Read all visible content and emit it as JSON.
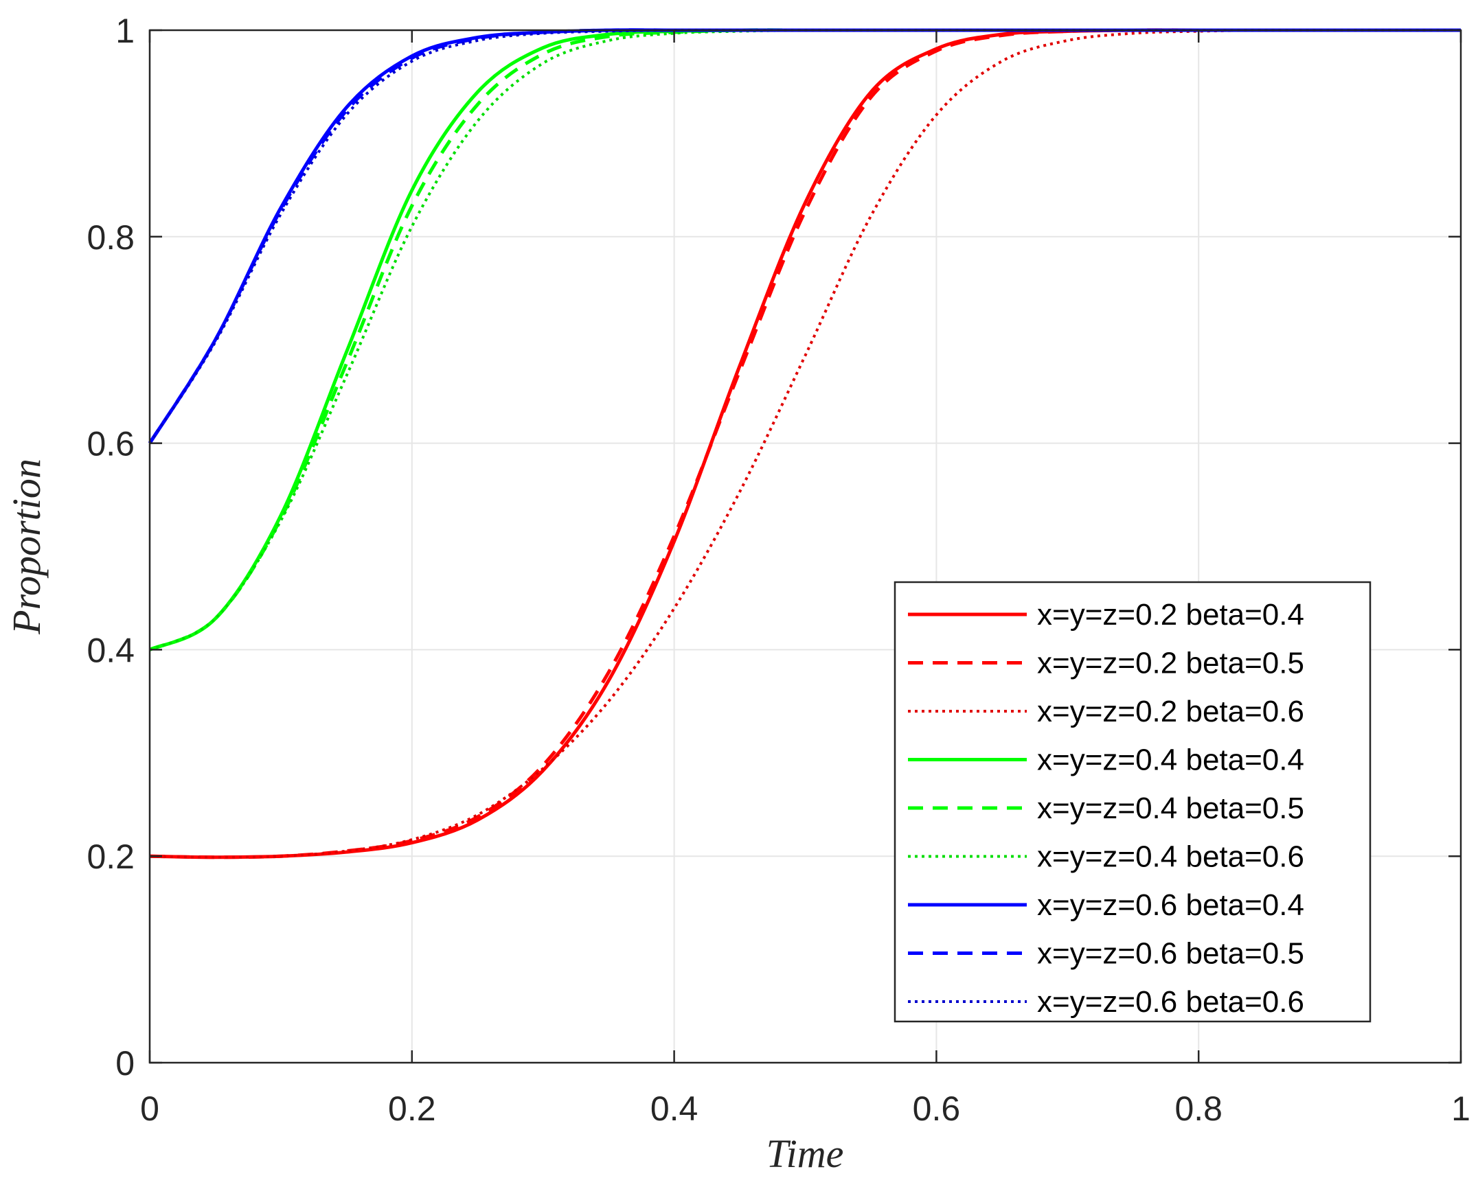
{
  "chart_data": {
    "type": "line",
    "title": "",
    "xlabel": "Time",
    "ylabel": "Proportion",
    "xlim": [
      0,
      1
    ],
    "ylim": [
      0,
      1
    ],
    "xticks": [
      0,
      0.2,
      0.4,
      0.6,
      0.8,
      1
    ],
    "yticks": [
      0,
      0.2,
      0.4,
      0.6,
      0.8,
      1
    ],
    "xtick_labels": [
      "0",
      "0.2",
      "0.4",
      "0.6",
      "0.8",
      "1"
    ],
    "ytick_labels": [
      "0",
      "0.2",
      "0.4",
      "0.6",
      "0.8",
      "1"
    ],
    "grid": true,
    "legend_position": "bottom-right",
    "x": [
      0,
      0.05,
      0.1,
      0.15,
      0.2,
      0.25,
      0.3,
      0.35,
      0.4,
      0.45,
      0.5,
      0.55,
      0.6,
      0.65,
      0.7,
      0.75,
      0.8,
      0.85,
      0.9,
      0.95,
      1
    ],
    "series": [
      {
        "name": "x=y=z=0.2 beta=0.4",
        "color": "#ff0000",
        "style": "solid",
        "values": [
          0.2,
          0.199,
          0.2,
          0.204,
          0.213,
          0.235,
          0.283,
          0.37,
          0.505,
          0.675,
          0.833,
          0.94,
          0.982,
          0.996,
          0.999,
          1,
          1,
          1,
          1,
          1,
          1
        ]
      },
      {
        "name": "x=y=z=0.2 beta=0.5",
        "color": "#ff0000",
        "style": "dashed",
        "values": [
          0.2,
          0.199,
          0.2,
          0.205,
          0.215,
          0.238,
          0.288,
          0.378,
          0.51,
          0.67,
          0.825,
          0.935,
          0.98,
          0.995,
          0.999,
          1,
          1,
          1,
          1,
          1,
          1
        ]
      },
      {
        "name": "x=y=z=0.2 beta=0.6",
        "color": "#e00000",
        "style": "dotted",
        "values": [
          0.2,
          0.199,
          0.2,
          0.205,
          0.216,
          0.24,
          0.285,
          0.35,
          0.44,
          0.553,
          0.685,
          0.82,
          0.918,
          0.97,
          0.99,
          0.997,
          0.999,
          1,
          1,
          1,
          1
        ]
      },
      {
        "name": "x=y=z=0.4 beta=0.4",
        "color": "#00ff00",
        "style": "solid",
        "values": [
          0.4,
          0.43,
          0.53,
          0.688,
          0.845,
          0.94,
          0.983,
          0.996,
          0.999,
          1,
          1,
          1,
          1,
          1,
          1,
          1,
          1,
          1,
          1,
          1,
          1
        ]
      },
      {
        "name": "x=y=z=0.4 beta=0.5",
        "color": "#00ff00",
        "style": "dashed",
        "values": [
          0.4,
          0.43,
          0.527,
          0.677,
          0.83,
          0.928,
          0.977,
          0.994,
          0.998,
          1,
          1,
          1,
          1,
          1,
          1,
          1,
          1,
          1,
          1,
          1,
          1
        ]
      },
      {
        "name": "x=y=z=0.4 beta=0.6",
        "color": "#00dd00",
        "style": "dotted",
        "values": [
          0.4,
          0.43,
          0.525,
          0.665,
          0.81,
          0.912,
          0.968,
          0.99,
          0.997,
          0.999,
          1,
          1,
          1,
          1,
          1,
          1,
          1,
          1,
          1,
          1,
          1
        ]
      },
      {
        "name": "x=y=z=0.6 beta=0.4",
        "color": "#0000ff",
        "style": "solid",
        "values": [
          0.6,
          0.7,
          0.828,
          0.925,
          0.975,
          0.993,
          0.998,
          1,
          1,
          1,
          1,
          1,
          1,
          1,
          1,
          1,
          1,
          1,
          1,
          1,
          1
        ]
      },
      {
        "name": "x=y=z=0.6 beta=0.5",
        "color": "#0000ff",
        "style": "dashed",
        "values": [
          0.6,
          0.7,
          0.826,
          0.922,
          0.973,
          0.992,
          0.998,
          1,
          1,
          1,
          1,
          1,
          1,
          1,
          1,
          1,
          1,
          1,
          1,
          1,
          1
        ]
      },
      {
        "name": "x=y=z=0.6 beta=0.6",
        "color": "#0000cc",
        "style": "dotted",
        "values": [
          0.6,
          0.698,
          0.822,
          0.918,
          0.97,
          0.99,
          0.997,
          0.999,
          1,
          1,
          1,
          1,
          1,
          1,
          1,
          1,
          1,
          1,
          1,
          1,
          1
        ]
      }
    ]
  }
}
